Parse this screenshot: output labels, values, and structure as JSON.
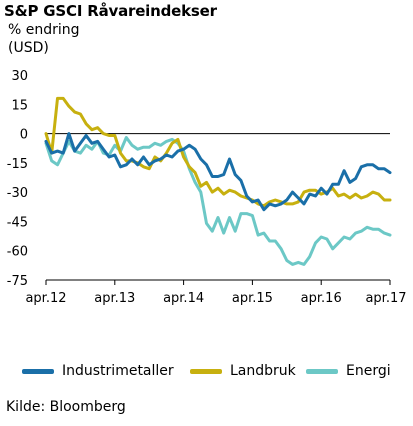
{
  "title": "S&P GSCI Råvareindekser",
  "subtitle_line1": "% endring",
  "subtitle_line2": "(USD)",
  "source": "Kilde: Bloomberg",
  "colors": {
    "industrimetaller": "#1a6fa8",
    "landbruk": "#c7b00f",
    "energi": "#6cc8c6",
    "zero_line": "#000000",
    "axis": "#000000"
  },
  "chart_data": {
    "type": "line",
    "title": "S&P GSCI Råvareindekser",
    "ylabel": "% endring (USD)",
    "xlabel": "",
    "ylim": [
      -75,
      30
    ],
    "yticks": [
      30,
      15,
      0,
      -15,
      -30,
      -45,
      -60,
      -75
    ],
    "xlim": [
      0,
      60
    ],
    "xticks": [
      {
        "x": 0,
        "label": "apr.12"
      },
      {
        "x": 12,
        "label": "apr.13"
      },
      {
        "x": 24,
        "label": "apr.14"
      },
      {
        "x": 36,
        "label": "apr.15"
      },
      {
        "x": 48,
        "label": "apr.16"
      },
      {
        "x": 60,
        "label": "apr.17"
      }
    ],
    "grid": false,
    "legend_position": "bottom",
    "series": [
      {
        "name": "Industrimetaller",
        "color": "#1a6fa8",
        "x": [
          0,
          1,
          2,
          3,
          4,
          5,
          6,
          7,
          8,
          9,
          10,
          11,
          12,
          13,
          14,
          15,
          16,
          17,
          18,
          19,
          20,
          21,
          22,
          23,
          24,
          25,
          26,
          27,
          28,
          29,
          30,
          31,
          32,
          33,
          34,
          35,
          36,
          37,
          38,
          39,
          40,
          41,
          42,
          43,
          44,
          45,
          46,
          47,
          48,
          49,
          50,
          51,
          52,
          53,
          54,
          55,
          56,
          57,
          58,
          59,
          60
        ],
        "values": [
          -4,
          -10,
          -9,
          -10,
          0,
          -9,
          -5,
          -1,
          -5,
          -4,
          -8,
          -12,
          -11,
          -17,
          -16,
          -13,
          -16,
          -12,
          -16,
          -14,
          -13,
          -11,
          -12,
          -9,
          -8,
          -6,
          -8,
          -13,
          -16,
          -22,
          -22,
          -21,
          -13,
          -21,
          -24,
          -32,
          -35,
          -34,
          -39,
          -36,
          -37,
          -36,
          -34,
          -30,
          -33,
          -36,
          -31,
          -32,
          -28,
          -31,
          -26,
          -26,
          -19,
          -25,
          -23,
          -17,
          -16,
          -16,
          -18,
          -18,
          -20
        ]
      },
      {
        "name": "Landbruk",
        "color": "#c7b00f",
        "x": [
          0,
          1,
          2,
          3,
          4,
          5,
          6,
          7,
          8,
          9,
          10,
          11,
          12,
          13,
          14,
          15,
          16,
          17,
          18,
          19,
          20,
          21,
          22,
          23,
          24,
          25,
          26,
          27,
          28,
          29,
          30,
          31,
          32,
          33,
          34,
          35,
          36,
          37,
          38,
          39,
          40,
          41,
          42,
          43,
          44,
          45,
          46,
          47,
          48,
          49,
          50,
          51,
          52,
          53,
          54,
          55,
          56,
          57,
          58,
          59,
          60
        ],
        "values": [
          0,
          -10,
          18,
          18,
          14,
          11,
          10,
          5,
          2,
          3,
          0,
          -1,
          -1,
          -10,
          -14,
          -14,
          -15,
          -17,
          -18,
          -12,
          -14,
          -10,
          -5,
          -3,
          -12,
          -17,
          -20,
          -27,
          -25,
          -30,
          -28,
          -31,
          -29,
          -30,
          -32,
          -33,
          -34,
          -36,
          -37,
          -35,
          -34,
          -35,
          -36,
          -36,
          -35,
          -30,
          -29,
          -29,
          -31,
          -30,
          -28,
          -32,
          -31,
          -33,
          -31,
          -33,
          -32,
          -30,
          -31,
          -34,
          -34
        ]
      },
      {
        "name": "Energi",
        "color": "#6cc8c6",
        "x": [
          0,
          1,
          2,
          3,
          4,
          5,
          6,
          7,
          8,
          9,
          10,
          11,
          12,
          13,
          14,
          15,
          16,
          17,
          18,
          19,
          20,
          21,
          22,
          23,
          24,
          25,
          26,
          27,
          28,
          29,
          30,
          31,
          32,
          33,
          34,
          35,
          36,
          37,
          38,
          39,
          40,
          41,
          42,
          43,
          44,
          45,
          46,
          47,
          48,
          49,
          50,
          51,
          52,
          53,
          54,
          55,
          56,
          57,
          58,
          59,
          60
        ],
        "values": [
          -5,
          -14,
          -16,
          -10,
          -4,
          -9,
          -10,
          -6,
          -8,
          -4,
          -10,
          -11,
          -6,
          -9,
          -2,
          -6,
          -8,
          -7,
          -7,
          -5,
          -6,
          -4,
          -3,
          -5,
          -9,
          -18,
          -25,
          -30,
          -46,
          -50,
          -43,
          -51,
          -43,
          -50,
          -41,
          -41,
          -42,
          -52,
          -51,
          -55,
          -55,
          -59,
          -65,
          -67,
          -66,
          -67,
          -63,
          -56,
          -53,
          -54,
          -59,
          -56,
          -53,
          -54,
          -51,
          -50,
          -48,
          -49,
          -49,
          -51,
          -52
        ]
      }
    ]
  }
}
